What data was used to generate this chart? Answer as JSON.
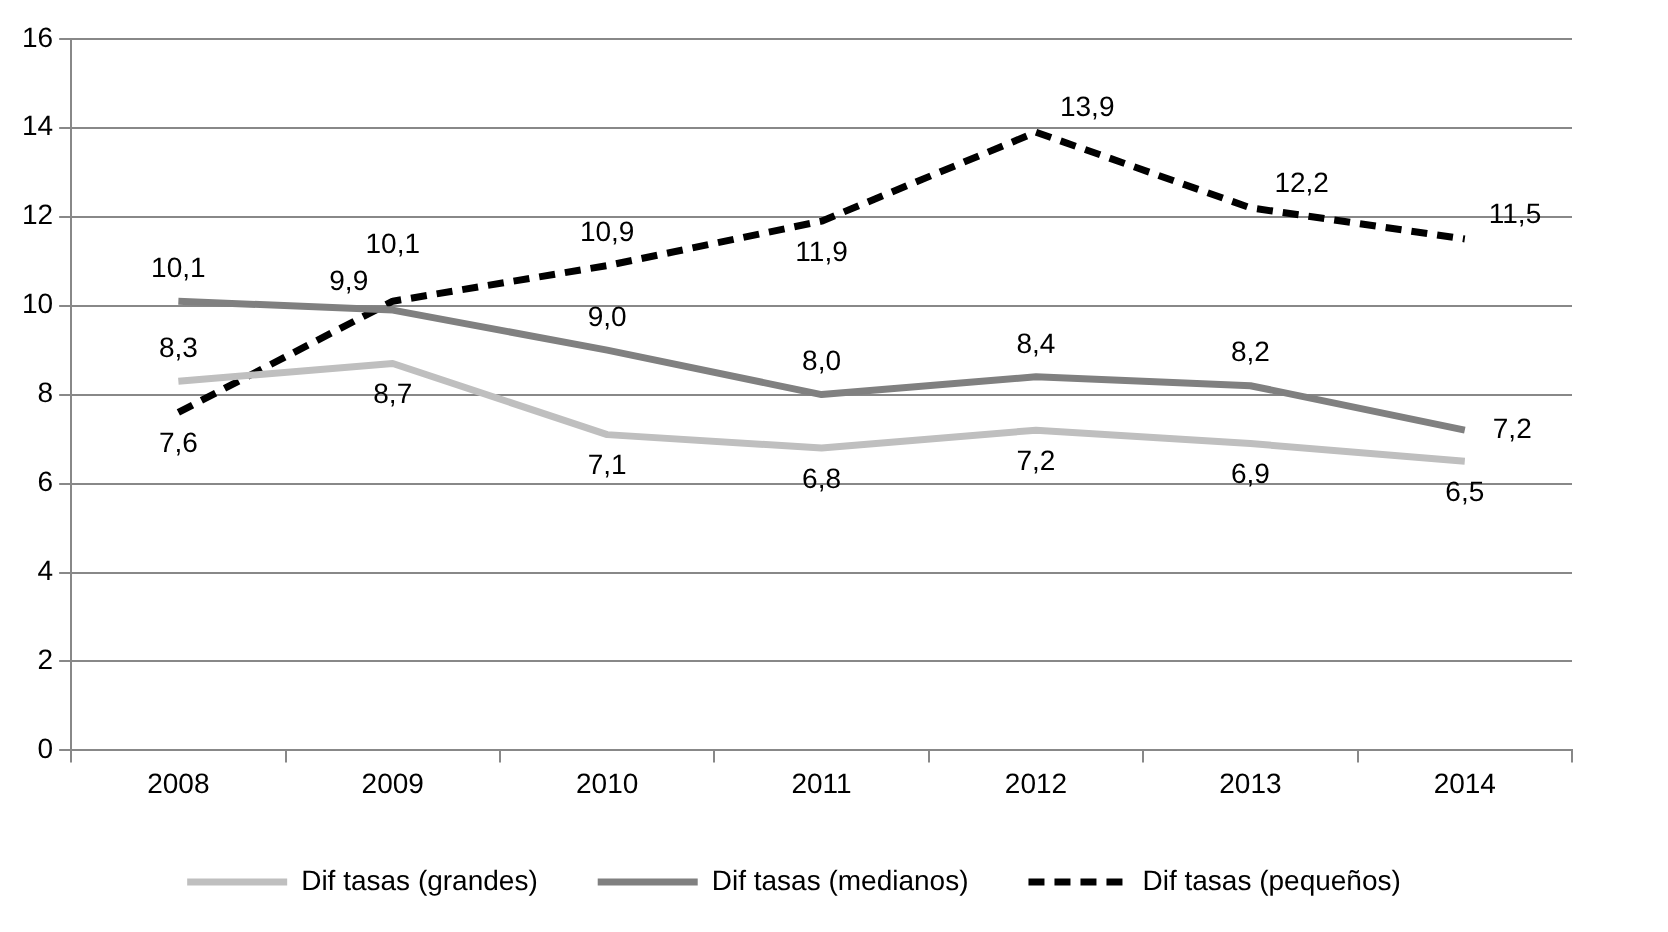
{
  "chart_data": {
    "type": "line",
    "categories": [
      "2008",
      "2009",
      "2010",
      "2011",
      "2012",
      "2013",
      "2014"
    ],
    "ylim": [
      0,
      16
    ],
    "yticks": [
      0,
      2,
      4,
      6,
      8,
      10,
      12,
      14,
      16
    ],
    "grid": "y",
    "legend": "bottom",
    "marker": "none",
    "series": [
      {
        "name": "Dif tasas (grandes)",
        "color": "#bfbfbf",
        "line_style": "solid",
        "values": [
          8.3,
          8.7,
          7.1,
          6.8,
          7.2,
          6.9,
          6.5
        ],
        "value_labels": [
          "8,3",
          "8,7",
          "7,1",
          "6,8",
          "7,2",
          "6,9",
          "6,5"
        ]
      },
      {
        "name": "Dif tasas (medianos)",
        "color": "#808080",
        "line_style": "solid",
        "values": [
          10.1,
          9.9,
          9.0,
          8.0,
          8.4,
          8.2,
          7.2
        ],
        "value_labels": [
          "10,1",
          "9,9",
          "9,0",
          "8,0",
          "8,4",
          "8,2",
          "7,2"
        ]
      },
      {
        "name": "Dif tasas (pequeños)",
        "color": "#000000",
        "line_style": "dashed",
        "values": [
          7.6,
          10.1,
          10.9,
          11.9,
          13.9,
          12.2,
          11.5
        ],
        "value_labels": [
          "7,6",
          "10,1",
          "10,9",
          "11,9",
          "13,9",
          "12,2",
          "11,5"
        ]
      }
    ]
  }
}
